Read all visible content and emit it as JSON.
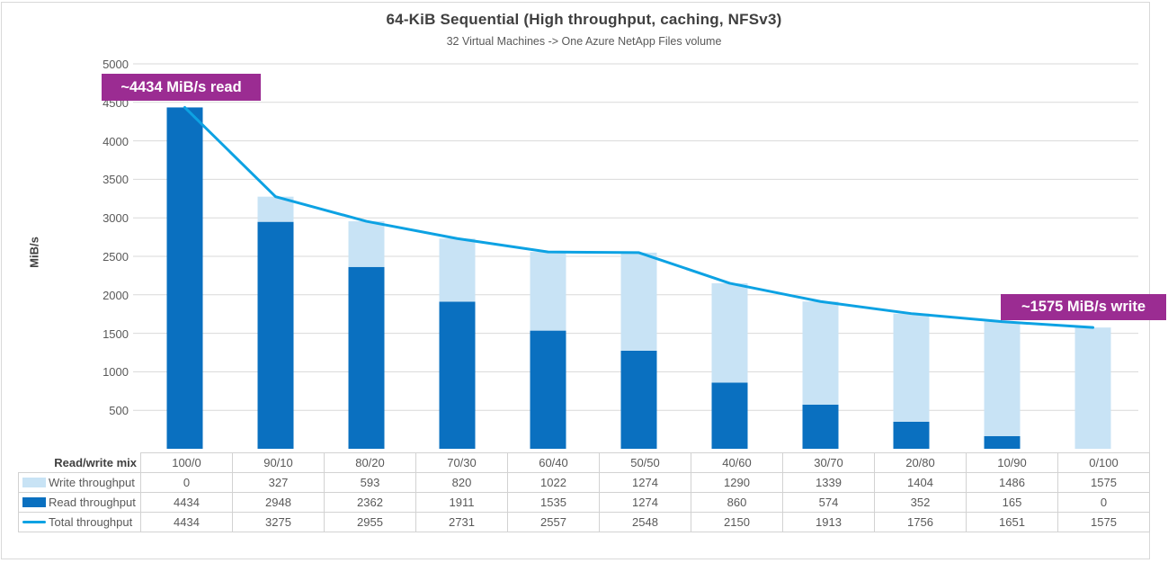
{
  "chart_data": {
    "type": "bar",
    "subtype": "stacked-bars-with-line-overlay",
    "title": "64-KiB Sequential (High throughput, caching, NFSv3)",
    "subtitle": "32 Virtual Machines -> One Azure NetApp Files volume",
    "ylabel": "MiB/s",
    "xlabel": "",
    "categories_label": "Read/write mix",
    "categories": [
      "100/0",
      "90/10",
      "80/20",
      "70/30",
      "60/40",
      "50/50",
      "40/60",
      "30/70",
      "20/80",
      "10/90",
      "0/100"
    ],
    "series": [
      {
        "name": "Write throughput",
        "role": "write",
        "render": "bar-top-segment",
        "color": "#C8E3F5",
        "values": [
          0,
          327,
          593,
          820,
          1022,
          1274,
          1290,
          1339,
          1404,
          1486,
          1575
        ]
      },
      {
        "name": "Read throughput",
        "role": "read",
        "render": "bar-bottom-segment",
        "color": "#0A70C0",
        "values": [
          4434,
          2948,
          2362,
          1911,
          1535,
          1274,
          860,
          574,
          352,
          165,
          0
        ]
      },
      {
        "name": "Total throughput",
        "role": "total",
        "render": "line",
        "color": "#0DA2E3",
        "values": [
          4434,
          3275,
          2955,
          2731,
          2557,
          2548,
          2150,
          1913,
          1756,
          1651,
          1575
        ]
      }
    ],
    "ylim": [
      0,
      5000
    ],
    "yticks": [
      500,
      1000,
      1500,
      2000,
      2500,
      3000,
      3500,
      4000,
      4500,
      5000
    ],
    "grid": true,
    "legend_position": "table-left-column"
  },
  "annotations": {
    "read": {
      "text": "~4434 MiB/s read",
      "bg": "#9B2C92"
    },
    "write": {
      "text": "~1575 MiB/s write",
      "bg": "#9B2C92"
    }
  },
  "colors": {
    "read_bar": "#0A70C0",
    "write_bar": "#C8E3F5",
    "total_line": "#0DA2E3",
    "annotation_bg": "#9B2C92",
    "gridline": "#D9D9D9",
    "title_text": "#3F3F3F",
    "body_text": "#595959"
  }
}
